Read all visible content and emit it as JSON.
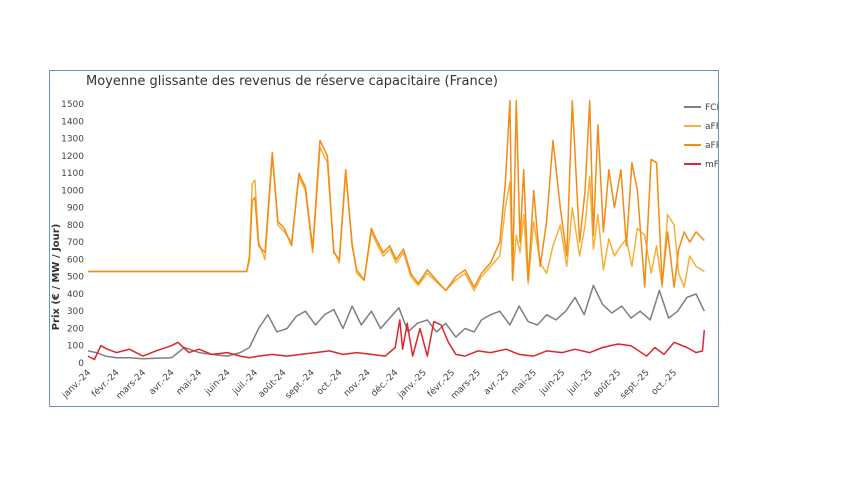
{
  "chart_data": {
    "type": "line",
    "title": "Moyenne glissante des revenus de réserve capacitaire (France)",
    "xlabel": "",
    "ylabel": "Prix (€ / MW / Jour)",
    "ylim": [
      0,
      1530
    ],
    "yticks": [
      0,
      100,
      200,
      300,
      400,
      500,
      600,
      700,
      800,
      900,
      1000,
      1100,
      1200,
      1300,
      1400,
      1500
    ],
    "xlim": [
      "2024-01-01",
      "2025-11-07"
    ],
    "xticks": [
      {
        "date": "2024-01-01",
        "label": "janv.-24"
      },
      {
        "date": "2024-02-01",
        "label": "févr.-24"
      },
      {
        "date": "2024-03-01",
        "label": "mars-24"
      },
      {
        "date": "2024-04-01",
        "label": "avr.-24"
      },
      {
        "date": "2024-05-01",
        "label": "mai-24"
      },
      {
        "date": "2024-06-01",
        "label": "juin-24"
      },
      {
        "date": "2024-07-01",
        "label": "juil.-24"
      },
      {
        "date": "2024-08-01",
        "label": "août-24"
      },
      {
        "date": "2024-09-01",
        "label": "sept.-24"
      },
      {
        "date": "2024-10-01",
        "label": "oct.-24"
      },
      {
        "date": "2024-11-01",
        "label": "nov.-24"
      },
      {
        "date": "2024-12-01",
        "label": "déc.-24"
      },
      {
        "date": "2025-01-01",
        "label": "janv.-25"
      },
      {
        "date": "2025-02-01",
        "label": "févr.-25"
      },
      {
        "date": "2025-03-01",
        "label": "mars-25"
      },
      {
        "date": "2025-04-01",
        "label": "avr.-25"
      },
      {
        "date": "2025-05-01",
        "label": "mai-25"
      },
      {
        "date": "2025-06-01",
        "label": "juin-25"
      },
      {
        "date": "2025-07-01",
        "label": "juil.-25"
      },
      {
        "date": "2025-08-01",
        "label": "août-25"
      },
      {
        "date": "2025-09-01",
        "label": "sept.-25"
      },
      {
        "date": "2025-10-01",
        "label": "oct.-25"
      }
    ],
    "grid": false,
    "legend": "right",
    "series": [
      {
        "name": "FCR",
        "color": "#7f7f7f",
        "x": [
          "2024-01-01",
          "2024-01-10",
          "2024-01-20",
          "2024-02-01",
          "2024-02-15",
          "2024-03-01",
          "2024-03-15",
          "2024-04-01",
          "2024-04-15",
          "2024-05-01",
          "2024-05-15",
          "2024-06-01",
          "2024-06-15",
          "2024-06-25",
          "2024-07-05",
          "2024-07-15",
          "2024-07-25",
          "2024-08-05",
          "2024-08-15",
          "2024-08-25",
          "2024-09-05",
          "2024-09-15",
          "2024-09-25",
          "2024-10-05",
          "2024-10-15",
          "2024-10-25",
          "2024-11-05",
          "2024-11-15",
          "2024-11-25",
          "2024-12-05",
          "2024-12-15",
          "2024-12-25",
          "2025-01-05",
          "2025-01-15",
          "2025-01-25",
          "2025-02-05",
          "2025-02-15",
          "2025-02-25",
          "2025-03-05",
          "2025-03-15",
          "2025-03-25",
          "2025-04-05",
          "2025-04-15",
          "2025-04-25",
          "2025-05-05",
          "2025-05-15",
          "2025-05-25",
          "2025-06-05",
          "2025-06-15",
          "2025-06-25",
          "2025-07-05",
          "2025-07-15",
          "2025-07-25",
          "2025-08-05",
          "2025-08-15",
          "2025-08-25",
          "2025-09-05",
          "2025-09-15",
          "2025-09-25",
          "2025-10-05",
          "2025-10-15",
          "2025-10-25",
          "2025-11-03"
        ],
        "values": [
          70,
          60,
          40,
          30,
          30,
          25,
          28,
          30,
          90,
          60,
          50,
          40,
          60,
          90,
          200,
          280,
          180,
          200,
          270,
          300,
          220,
          280,
          310,
          200,
          330,
          220,
          300,
          200,
          260,
          320,
          180,
          230,
          250,
          180,
          230,
          150,
          200,
          180,
          250,
          280,
          300,
          220,
          330,
          240,
          220,
          280,
          250,
          300,
          380,
          280,
          450,
          340,
          290,
          330,
          260,
          300,
          250,
          420,
          260,
          300,
          380,
          400,
          300
        ]
      },
      {
        "name": "aFRR Down",
        "color": "#f5b13a",
        "x": [
          "2024-01-01",
          "2024-03-01",
          "2024-06-01",
          "2024-06-22",
          "2024-06-25",
          "2024-06-28",
          "2024-07-01",
          "2024-07-05",
          "2024-07-12",
          "2024-07-20",
          "2024-07-26",
          "2024-08-02",
          "2024-08-10",
          "2024-08-18",
          "2024-08-25",
          "2024-09-02",
          "2024-09-10",
          "2024-09-18",
          "2024-09-25",
          "2024-10-01",
          "2024-10-08",
          "2024-10-15",
          "2024-10-20",
          "2024-10-28",
          "2024-11-05",
          "2024-11-10",
          "2024-11-18",
          "2024-11-25",
          "2024-12-02",
          "2024-12-10",
          "2024-12-18",
          "2024-12-26",
          "2025-01-05",
          "2025-01-15",
          "2025-01-25",
          "2025-02-05",
          "2025-02-15",
          "2025-02-25",
          "2025-03-05",
          "2025-03-15",
          "2025-03-25",
          "2025-03-31",
          "2025-04-05",
          "2025-04-08",
          "2025-04-12",
          "2025-04-16",
          "2025-04-20",
          "2025-04-25",
          "2025-05-01",
          "2025-05-08",
          "2025-05-15",
          "2025-05-22",
          "2025-05-30",
          "2025-06-06",
          "2025-06-12",
          "2025-06-20",
          "2025-06-26",
          "2025-07-01",
          "2025-07-05",
          "2025-07-10",
          "2025-07-16",
          "2025-07-22",
          "2025-07-28",
          "2025-08-04",
          "2025-08-10",
          "2025-08-16",
          "2025-08-22",
          "2025-08-30",
          "2025-09-06",
          "2025-09-12",
          "2025-09-18",
          "2025-09-24",
          "2025-10-01",
          "2025-10-06",
          "2025-10-12",
          "2025-10-18",
          "2025-10-25",
          "2025-11-03"
        ],
        "values": [
          530,
          530,
          530,
          530,
          620,
          1040,
          1060,
          700,
          600,
          1200,
          800,
          760,
          700,
          1080,
          1000,
          640,
          1250,
          1160,
          650,
          580,
          1100,
          700,
          520,
          480,
          760,
          700,
          620,
          660,
          580,
          640,
          500,
          450,
          520,
          470,
          420,
          480,
          520,
          420,
          500,
          560,
          620,
          900,
          1050,
          480,
          740,
          640,
          860,
          460,
          820,
          580,
          520,
          680,
          800,
          560,
          900,
          620,
          800,
          1080,
          660,
          860,
          540,
          720,
          620,
          680,
          720,
          560,
          780,
          740,
          520,
          680,
          440,
          860,
          800,
          520,
          440,
          620,
          560,
          530
        ]
      },
      {
        "name": "aFRR Up",
        "color": "#f28c16",
        "x": [
          "2024-01-01",
          "2024-03-01",
          "2024-06-01",
          "2024-06-22",
          "2024-06-25",
          "2024-06-28",
          "2024-07-01",
          "2024-07-05",
          "2024-07-12",
          "2024-07-20",
          "2024-07-26",
          "2024-08-02",
          "2024-08-10",
          "2024-08-18",
          "2024-08-25",
          "2024-09-02",
          "2024-09-10",
          "2024-09-18",
          "2024-09-25",
          "2024-10-01",
          "2024-10-08",
          "2024-10-15",
          "2024-10-20",
          "2024-10-28",
          "2024-11-05",
          "2024-11-10",
          "2024-11-18",
          "2024-11-25",
          "2024-12-02",
          "2024-12-10",
          "2024-12-18",
          "2024-12-26",
          "2025-01-05",
          "2025-01-15",
          "2025-01-25",
          "2025-02-05",
          "2025-02-15",
          "2025-02-25",
          "2025-03-05",
          "2025-03-15",
          "2025-03-25",
          "2025-03-31",
          "2025-04-05",
          "2025-04-08",
          "2025-04-12",
          "2025-04-16",
          "2025-04-20",
          "2025-04-25",
          "2025-05-01",
          "2025-05-08",
          "2025-05-15",
          "2025-05-22",
          "2025-05-30",
          "2025-06-06",
          "2025-06-12",
          "2025-06-20",
          "2025-06-26",
          "2025-07-01",
          "2025-07-05",
          "2025-07-10",
          "2025-07-16",
          "2025-07-22",
          "2025-07-28",
          "2025-08-04",
          "2025-08-10",
          "2025-08-16",
          "2025-08-22",
          "2025-08-30",
          "2025-09-06",
          "2025-09-12",
          "2025-09-18",
          "2025-09-24",
          "2025-10-01",
          "2025-10-06",
          "2025-10-12",
          "2025-10-18",
          "2025-10-25",
          "2025-11-03"
        ],
        "values": [
          530,
          530,
          530,
          530,
          600,
          940,
          960,
          680,
          640,
          1220,
          820,
          780,
          680,
          1100,
          1020,
          660,
          1290,
          1200,
          640,
          600,
          1120,
          680,
          540,
          480,
          780,
          720,
          640,
          680,
          600,
          660,
          520,
          460,
          540,
          480,
          420,
          500,
          540,
          440,
          520,
          580,
          700,
          1040,
          1520,
          480,
          1520,
          700,
          1120,
          480,
          1000,
          560,
          820,
          1290,
          900,
          620,
          1520,
          700,
          1000,
          1520,
          740,
          1380,
          760,
          1120,
          900,
          1120,
          680,
          1160,
          1000,
          440,
          1180,
          1160,
          460,
          760,
          440,
          660,
          760,
          700,
          760,
          710
        ]
      },
      {
        "name": "mFRR Up",
        "color": "#e0252b",
        "x": [
          "2024-01-01",
          "2024-01-08",
          "2024-01-15",
          "2024-01-22",
          "2024-02-01",
          "2024-02-15",
          "2024-03-01",
          "2024-03-15",
          "2024-04-01",
          "2024-04-08",
          "2024-04-20",
          "2024-05-01",
          "2024-05-15",
          "2024-06-01",
          "2024-06-15",
          "2024-06-25",
          "2024-07-05",
          "2024-07-20",
          "2024-08-05",
          "2024-08-20",
          "2024-09-05",
          "2024-09-20",
          "2024-10-05",
          "2024-10-20",
          "2024-11-05",
          "2024-11-20",
          "2024-12-01",
          "2024-12-06",
          "2024-12-09",
          "2024-12-14",
          "2024-12-20",
          "2024-12-28",
          "2025-01-05",
          "2025-01-12",
          "2025-01-20",
          "2025-01-28",
          "2025-02-05",
          "2025-02-15",
          "2025-03-01",
          "2025-03-15",
          "2025-04-01",
          "2025-04-15",
          "2025-05-01",
          "2025-05-15",
          "2025-06-01",
          "2025-06-15",
          "2025-07-01",
          "2025-07-15",
          "2025-08-01",
          "2025-08-15",
          "2025-09-01",
          "2025-09-10",
          "2025-09-20",
          "2025-10-01",
          "2025-10-15",
          "2025-10-25",
          "2025-11-01",
          "2025-11-03"
        ],
        "values": [
          40,
          20,
          100,
          80,
          60,
          80,
          40,
          70,
          100,
          120,
          60,
          80,
          50,
          60,
          40,
          30,
          40,
          50,
          40,
          50,
          60,
          70,
          50,
          60,
          50,
          40,
          90,
          250,
          80,
          230,
          40,
          200,
          40,
          240,
          220,
          120,
          50,
          40,
          70,
          60,
          80,
          50,
          40,
          70,
          60,
          80,
          60,
          90,
          110,
          100,
          40,
          90,
          50,
          120,
          90,
          60,
          70,
          190
        ]
      }
    ]
  }
}
